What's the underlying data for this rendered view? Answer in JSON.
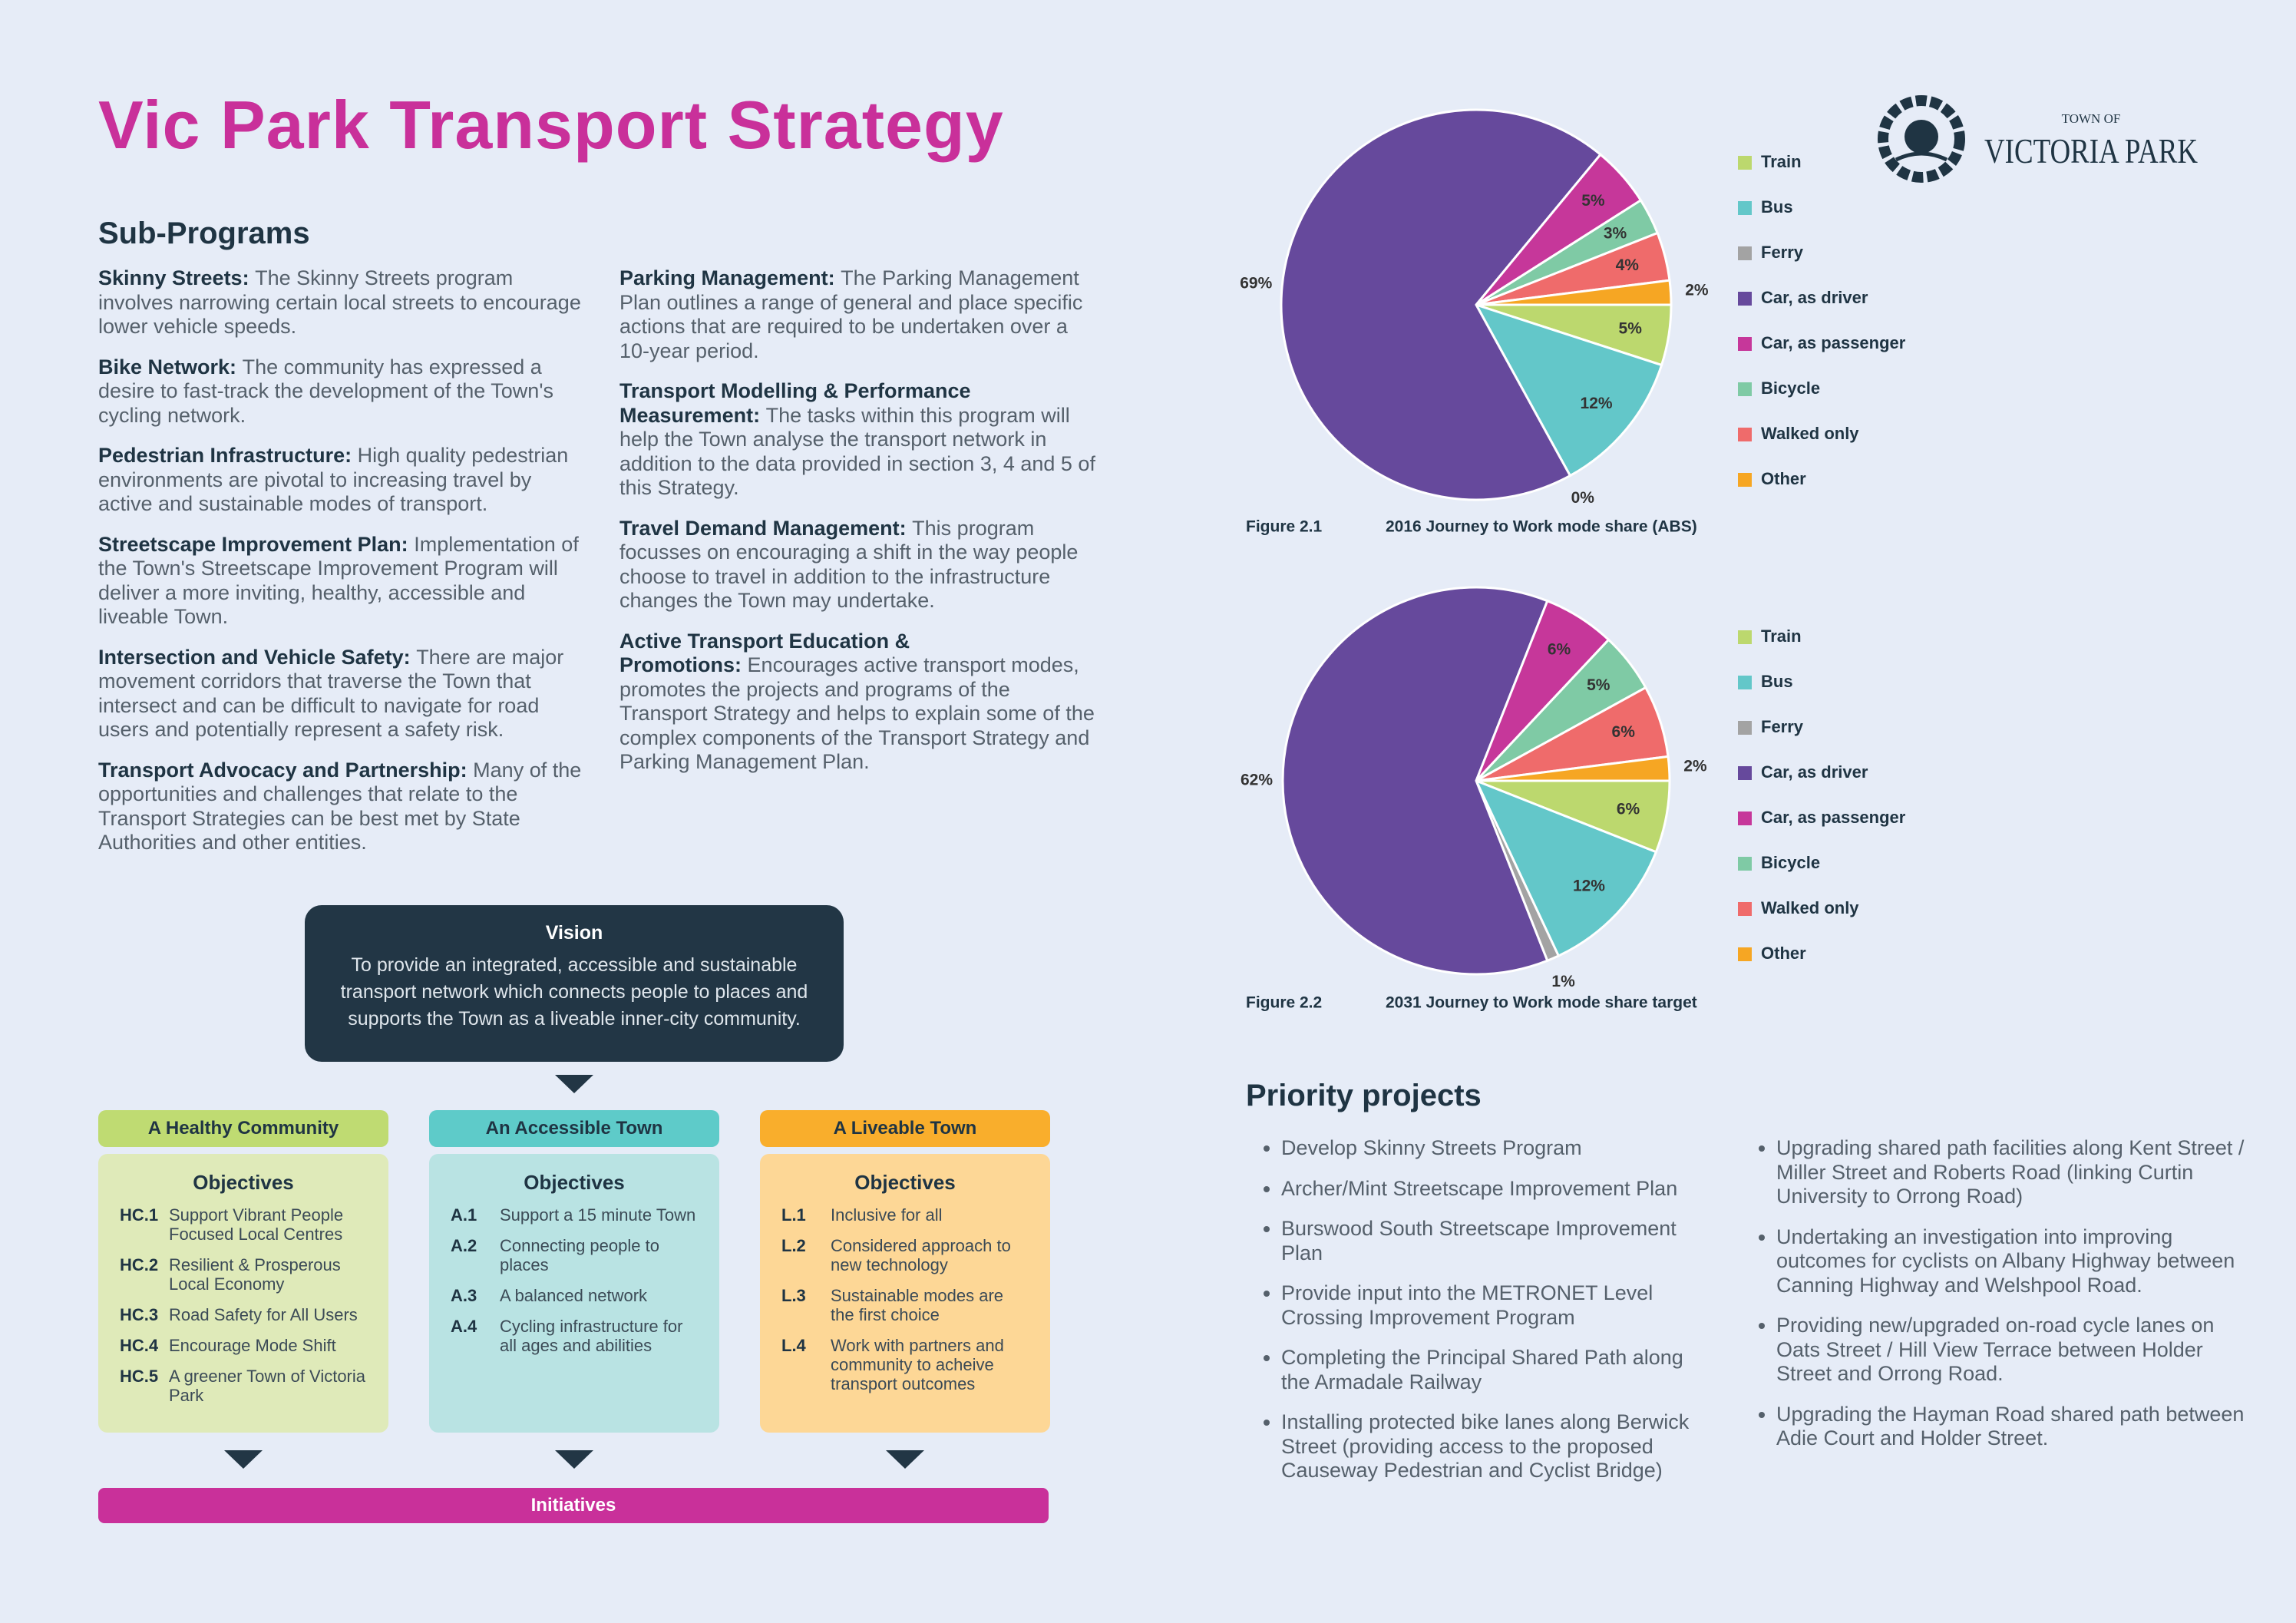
{
  "header": {
    "title": "Vic Park Transport Strategy",
    "logo": {
      "top": "TOWN OF",
      "name": "VICTORIA PARK"
    }
  },
  "sub_programs": {
    "heading": "Sub-Programs",
    "columns": [
      [
        {
          "term": "Skinny Streets:",
          "text": "The Skinny Streets program involves narrowing certain local streets to encourage lower vehicle speeds."
        },
        {
          "term": "Bike Network:",
          "text": "The community has expressed a desire to fast-track the development of the Town's cycling network."
        },
        {
          "term": "Pedestrian Infrastructure:",
          "text": "High quality pedestrian environments are pivotal to increasing travel by active and sustainable modes of transport."
        },
        {
          "term": "Streetscape Improvement Plan:",
          "text": "Implementation of the Town's Streetscape Improvement Program will deliver a more inviting, healthy, accessible and liveable Town."
        },
        {
          "term": "Intersection and Vehicle Safety:",
          "text": "There are major movement corridors that traverse the Town that intersect and can be difficult to navigate for road users and potentially represent a safety risk."
        },
        {
          "term": "Transport Advocacy and Partnership:",
          "text": "Many of the opportunities and challenges that relate to the Transport Strategies can be best met by State Authorities and other entities."
        }
      ],
      [
        {
          "term": "Parking Management:",
          "text": "The Parking Management Plan outlines a range of general and place specific actions that are required to be undertaken over a 10-year period."
        },
        {
          "term": "Transport Modelling & Performance Measurement:",
          "text": "The tasks within this program will help the Town analyse the transport network in addition to the data provided in section 3, 4 and 5 of this Strategy."
        },
        {
          "term": "Travel Demand Management:",
          "text": "This program focusses on encouraging a shift in the way people choose to travel in addition to the infrastructure changes the Town may undertake."
        },
        {
          "term": "Active Transport Education & Promotions:",
          "text": "Encourages active transport modes, promotes the projects and programs of the Transport Strategy and helps to explain some of the complex components of the Transport Strategy and Parking Management Plan."
        }
      ]
    ]
  },
  "vision": {
    "title": "Vision",
    "text": "To provide an integrated, accessible and sustainable transport network which connects people to places and supports the Town as a liveable inner-city community."
  },
  "pillars": [
    {
      "title": "A Healthy Community",
      "objectives_title": "Objectives",
      "items": [
        {
          "code": "HC.1",
          "text": "Support Vibrant People Focused Local Centres"
        },
        {
          "code": "HC.2",
          "text": "Resilient & Prosperous Local Economy"
        },
        {
          "code": "HC.3",
          "text": "Road Safety for All Users"
        },
        {
          "code": "HC.4",
          "text": "Encourage Mode Shift"
        },
        {
          "code": "HC.5",
          "text": "A greener Town of Victoria Park"
        }
      ]
    },
    {
      "title": "An Accessible Town",
      "objectives_title": "Objectives",
      "items": [
        {
          "code": "A.1",
          "text": "Support a 15 minute Town"
        },
        {
          "code": "A.2",
          "text": "Connecting people to places"
        },
        {
          "code": "A.3",
          "text": "A balanced network"
        },
        {
          "code": "A.4",
          "text": "Cycling infrastructure for all ages and abilities"
        }
      ]
    },
    {
      "title": "A Liveable Town",
      "objectives_title": "Objectives",
      "items": [
        {
          "code": "L.1",
          "text": "Inclusive for all"
        },
        {
          "code": "L.2",
          "text": "Considered approach to new technology"
        },
        {
          "code": "L.3",
          "text": "Sustainable modes are the first choice"
        },
        {
          "code": "L.4",
          "text": "Work with partners and community to acheive transport outcomes"
        }
      ]
    }
  ],
  "initiatives": "Initiatives",
  "priority_projects": {
    "heading": "Priority projects",
    "columns": [
      [
        "Develop Skinny Streets Program",
        "Archer/Mint Streetscape Improvement Plan",
        "Burswood South Streetscape Improvement Plan",
        "Provide input into the METRONET Level Crossing Improvement Program",
        "Completing the Principal Shared Path along the Armadale Railway",
        "Installing protected bike lanes along Berwick Street (providing access to the proposed Causeway Pedestrian and Cyclist Bridge)"
      ],
      [
        "Upgrading shared path facilities along Kent Street / Miller Street and Roberts Road (linking Curtin University to Orrong Road)",
        "Undertaking an investigation into improving outcomes for cyclists on Albany Highway between Canning Highway and Welshpool Road.",
        "Providing new/upgraded on-road cycle lanes on Oats Street / Hill View Terrace between Holder Street and Orrong Road.",
        "Upgrading the Hayman Road shared path between Adie Court and Holder Street."
      ]
    ]
  },
  "chart_data": [
    {
      "type": "pie",
      "figure": "Figure 2.1",
      "title": "2016 Journey to Work mode share (ABS)",
      "categories": [
        "Train",
        "Bus",
        "Ferry",
        "Car, as driver",
        "Car, as passenger",
        "Bicycle",
        "Walked only",
        "Other"
      ],
      "values": [
        5,
        12,
        0,
        69,
        5,
        3,
        4,
        2
      ],
      "value_labels": [
        "5%",
        "12%",
        "0%",
        "69%",
        "5%",
        "3%",
        "4%",
        "2%"
      ],
      "colors": [
        "#bcd86e",
        "#63c7c9",
        "#a3a3a3",
        "#66499c",
        "#c6379a",
        "#7fcaa5",
        "#ef6b6b",
        "#f6a623"
      ]
    },
    {
      "type": "pie",
      "figure": "Figure 2.2",
      "title": "2031 Journey to Work mode share target",
      "categories": [
        "Train",
        "Bus",
        "Ferry",
        "Car, as driver",
        "Car, as passenger",
        "Bicycle",
        "Walked only",
        "Other"
      ],
      "values": [
        6,
        12,
        1,
        62,
        6,
        5,
        6,
        2
      ],
      "value_labels": [
        "6%",
        "12%",
        "1%",
        "62%",
        "6%",
        "5%",
        "6%",
        "2%"
      ],
      "colors": [
        "#bcd86e",
        "#63c7c9",
        "#a3a3a3",
        "#66499c",
        "#c6379a",
        "#7fcaa5",
        "#ef6b6b",
        "#f6a623"
      ]
    }
  ]
}
